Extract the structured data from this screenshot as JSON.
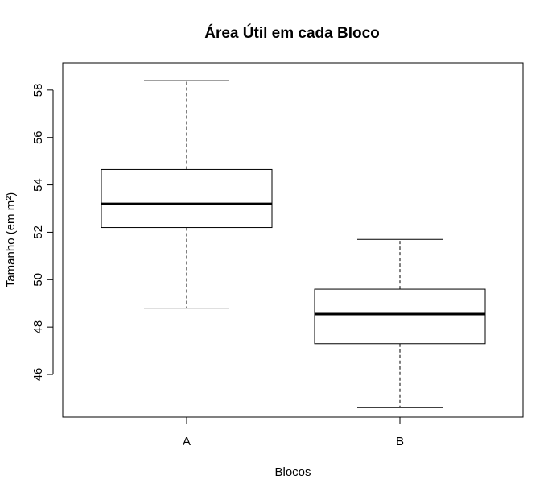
{
  "chart_data": {
    "type": "boxplot",
    "title": "Área Útil em cada Bloco",
    "xlabel": "Blocos",
    "ylabel": "Tamanho (em m²)",
    "categories": [
      "A",
      "B"
    ],
    "boxes": [
      {
        "category": "A",
        "min": 48.8,
        "q1": 52.2,
        "median": 53.2,
        "q3": 54.65,
        "max": 58.4
      },
      {
        "category": "B",
        "min": 44.6,
        "q1": 47.3,
        "median": 48.55,
        "q3": 49.6,
        "max": 51.7
      }
    ],
    "ylim": [
      44.2,
      59.15
    ],
    "yticks": [
      46,
      48,
      50,
      52,
      54,
      56,
      58
    ],
    "grid": false,
    "legend": "none",
    "colors": {
      "box_fill": "#ffffff",
      "line": "#000000",
      "background": "#ffffff"
    }
  }
}
